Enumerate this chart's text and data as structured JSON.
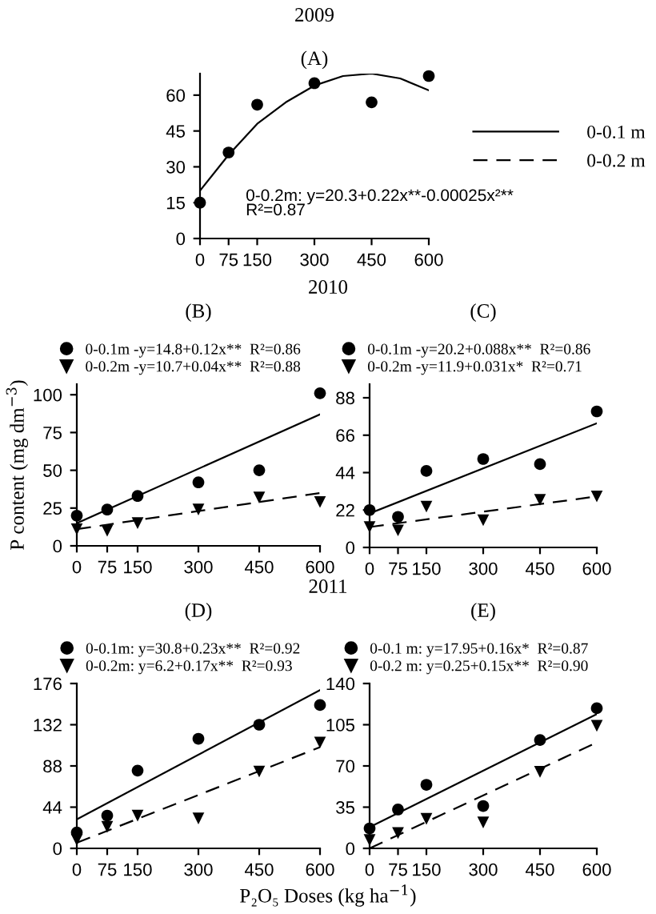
{
  "chart_data": [
    {
      "type": "scatter",
      "title": "(A)",
      "subtitle": "2009",
      "x": [
        0,
        75,
        150,
        300,
        450,
        600
      ],
      "xlim": [
        0,
        600
      ],
      "xticks": [
        0,
        75,
        150,
        300,
        450,
        600
      ],
      "ylim": [
        0,
        69
      ],
      "yticks": [
        0,
        15,
        30,
        45,
        60
      ],
      "legend": "right",
      "annotations": [
        "0-0.2m: y=20.3+0.22x**-0.00025x²**\nR²=0.87"
      ],
      "series": [
        {
          "type": "scatter",
          "color": "#000000",
          "marker": "circle",
          "values": [
            15,
            36,
            56,
            65,
            57,
            68
          ]
        },
        {
          "type": "line",
          "name": "0-0.1 m",
          "color": "#000000",
          "line_style": "solid",
          "x": [
            0,
            75,
            150,
            225,
            300,
            375,
            450,
            525,
            600
          ],
          "values": [
            20,
            35,
            48,
            57,
            64,
            68,
            69,
            67,
            62
          ]
        },
        {
          "type": "line",
          "name": "0-0.2 m",
          "color": "#000000",
          "line_style": "dashed",
          "values": [
            null,
            null,
            null,
            null,
            null,
            null
          ]
        }
      ]
    },
    {
      "type": "scatter",
      "title": "(B)",
      "subtitle": "2010",
      "ylabel": "P content (mg dm$^{−3}$)",
      "x": [
        0,
        75,
        150,
        300,
        450,
        600
      ],
      "xlim": [
        0,
        600
      ],
      "xticks": [
        0,
        75,
        150,
        300,
        450,
        600
      ],
      "ylim": [
        0,
        107
      ],
      "yticks": [
        0,
        25,
        50,
        75,
        100
      ],
      "legend": "top",
      "series": [
        {
          "type": "scatter",
          "name": "0-0.1m -y=14.8+0.12x**  R²=0.86",
          "color": "#000000",
          "marker": "circle",
          "values": [
            20,
            24,
            33,
            42,
            50,
            101
          ]
        },
        {
          "type": "scatter",
          "name": "0-0.2m -y=10.7+0.04x**  R²=0.88",
          "color": "#000000",
          "marker": "triangle",
          "values": [
            11,
            10,
            15,
            24,
            32,
            29
          ]
        },
        {
          "type": "line",
          "color": "#000000",
          "line_style": "solid",
          "x": [
            0,
            600
          ],
          "values": [
            15,
            87
          ]
        },
        {
          "type": "line",
          "color": "#000000",
          "line_style": "dashed",
          "x": [
            0,
            600
          ],
          "values": [
            11,
            35
          ]
        }
      ]
    },
    {
      "type": "scatter",
      "title": "(C)",
      "x": [
        0,
        75,
        150,
        300,
        450,
        600
      ],
      "xlim": [
        0,
        600
      ],
      "xticks": [
        0,
        75,
        150,
        300,
        450,
        600
      ],
      "ylim": [
        0,
        96
      ],
      "yticks": [
        0,
        22,
        44,
        66,
        88
      ],
      "legend": "top",
      "series": [
        {
          "type": "scatter",
          "name": "0-0.1m -y=20.2+0.088x**  R²=0.86",
          "color": "#000000",
          "marker": "circle",
          "values": [
            22,
            18,
            45,
            52,
            49,
            80
          ]
        },
        {
          "type": "scatter",
          "name": "0-0.2m -y=11.9+0.031x*  R²=0.71",
          "color": "#000000",
          "marker": "triangle",
          "values": [
            12,
            10,
            24,
            16,
            28,
            30
          ]
        },
        {
          "type": "line",
          "color": "#000000",
          "line_style": "solid",
          "x": [
            0,
            600
          ],
          "values": [
            20,
            73
          ]
        },
        {
          "type": "line",
          "color": "#000000",
          "line_style": "dashed",
          "x": [
            0,
            600
          ],
          "values": [
            12,
            30
          ]
        }
      ]
    },
    {
      "type": "scatter",
      "title": "(D)",
      "subtitle": "2011",
      "xlabel": "P₂O₅ Doses (kg ha$^{−1}$)",
      "x": [
        0,
        75,
        150,
        300,
        450,
        600
      ],
      "xlim": [
        0,
        600
      ],
      "xticks": [
        0,
        75,
        150,
        300,
        450,
        600
      ],
      "ylim": [
        0,
        176
      ],
      "yticks": [
        0,
        44,
        88,
        132,
        176
      ],
      "legend": "top",
      "series": [
        {
          "type": "scatter",
          "name": "0-0.1m: y=30.8+0.23x**  R²=0.92",
          "color": "#000000",
          "marker": "circle",
          "values": [
            17,
            35,
            83,
            117,
            132,
            153
          ]
        },
        {
          "type": "scatter",
          "name": "0-0.2m: y=6.2+0.17x**  R²=0.93",
          "color": "#000000",
          "marker": "triangle",
          "values": [
            9,
            23,
            35,
            32,
            82,
            113
          ]
        },
        {
          "type": "line",
          "color": "#000000",
          "line_style": "solid",
          "x": [
            0,
            600
          ],
          "values": [
            31,
            169
          ]
        },
        {
          "type": "line",
          "color": "#000000",
          "line_style": "dashed",
          "x": [
            0,
            600
          ],
          "values": [
            6,
            108
          ]
        }
      ]
    },
    {
      "type": "scatter",
      "title": "(E)",
      "x": [
        0,
        75,
        150,
        300,
        450,
        600
      ],
      "xlim": [
        0,
        600
      ],
      "xticks": [
        0,
        75,
        150,
        300,
        450,
        600
      ],
      "ylim": [
        0,
        140
      ],
      "yticks": [
        0,
        35,
        70,
        105,
        140
      ],
      "legend": "top",
      "series": [
        {
          "type": "scatter",
          "name": "0-0.1 m: y=17.95+0.16x*  R²=0.87",
          "color": "#000000",
          "marker": "circle",
          "values": [
            17,
            33,
            54,
            36,
            92,
            119
          ]
        },
        {
          "type": "scatter",
          "name": "0-0.2 m: y=0.25+0.15x**  R²=0.90",
          "color": "#000000",
          "marker": "triangle",
          "values": [
            7,
            13,
            25,
            22,
            65,
            104
          ]
        },
        {
          "type": "line",
          "color": "#000000",
          "line_style": "solid",
          "x": [
            0,
            600
          ],
          "values": [
            18,
            114
          ]
        },
        {
          "type": "line",
          "color": "#000000",
          "line_style": "dashed",
          "x": [
            0,
            600
          ],
          "values": [
            0,
            90
          ]
        }
      ]
    }
  ]
}
